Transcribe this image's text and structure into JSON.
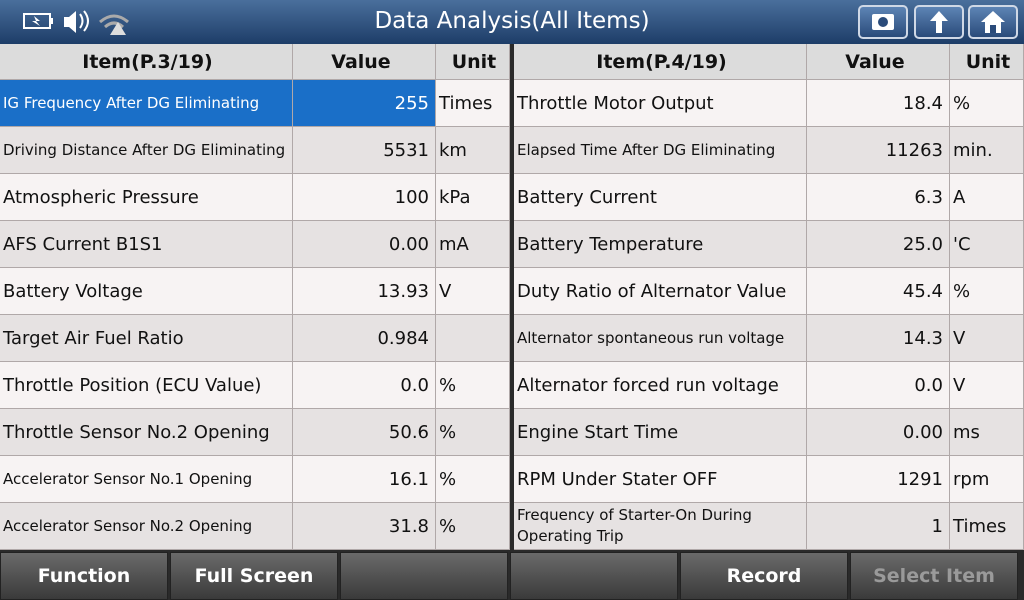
{
  "header": {
    "title": "Data Analysis(All Items)"
  },
  "left_table": {
    "headers": [
      "Item(P.3/19)",
      "Value",
      "Unit"
    ],
    "rows": [
      [
        "IG Frequency After DG Eliminating",
        "255",
        "Times"
      ],
      [
        "Driving Distance After DG Eliminating",
        "5531",
        "km"
      ],
      [
        "Atmospheric Pressure",
        "100",
        "kPa"
      ],
      [
        "AFS Current B1S1",
        "0.00",
        "mA"
      ],
      [
        "Battery Voltage",
        "13.93",
        "V"
      ],
      [
        "Target Air Fuel Ratio",
        "0.984",
        null
      ],
      [
        "Throttle Position (ECU Value)",
        "0.0",
        "%"
      ],
      [
        "Throttle Sensor No.2 Opening",
        "50.6",
        "%"
      ],
      [
        "Accelerator Sensor No.1 Opening",
        "16.1",
        "%"
      ],
      [
        "Accelerator Sensor No.2 Opening",
        "31.8",
        "%"
      ]
    ]
  },
  "right_table": {
    "headers": [
      "Item(P.4/19)",
      "Value",
      "Unit"
    ],
    "rows": [
      [
        "Throttle Motor Output",
        "18.4",
        "%"
      ],
      [
        "Elapsed Time After DG Eliminating",
        "11263",
        "min."
      ],
      [
        "Battery Current",
        "6.3",
        "A"
      ],
      [
        "Battery Temperature",
        "25.0",
        "'C"
      ],
      [
        "Duty Ratio of Alternator Value",
        "45.4",
        "%"
      ],
      [
        "Alternator spontaneous run voltage",
        "14.3",
        "V"
      ],
      [
        "Alternator forced run voltage",
        "0.0",
        "V"
      ],
      [
        "Engine Start Time",
        "0.00",
        "ms"
      ],
      [
        "RPM Under Stater OFF",
        "1291",
        "rpm"
      ],
      [
        "Frequency of Starter-On During Operating Trip",
        "1",
        "Times"
      ]
    ]
  },
  "footer": {
    "buttons": [
      "Function",
      "Full Screen",
      "Record",
      "Select Item"
    ]
  }
}
